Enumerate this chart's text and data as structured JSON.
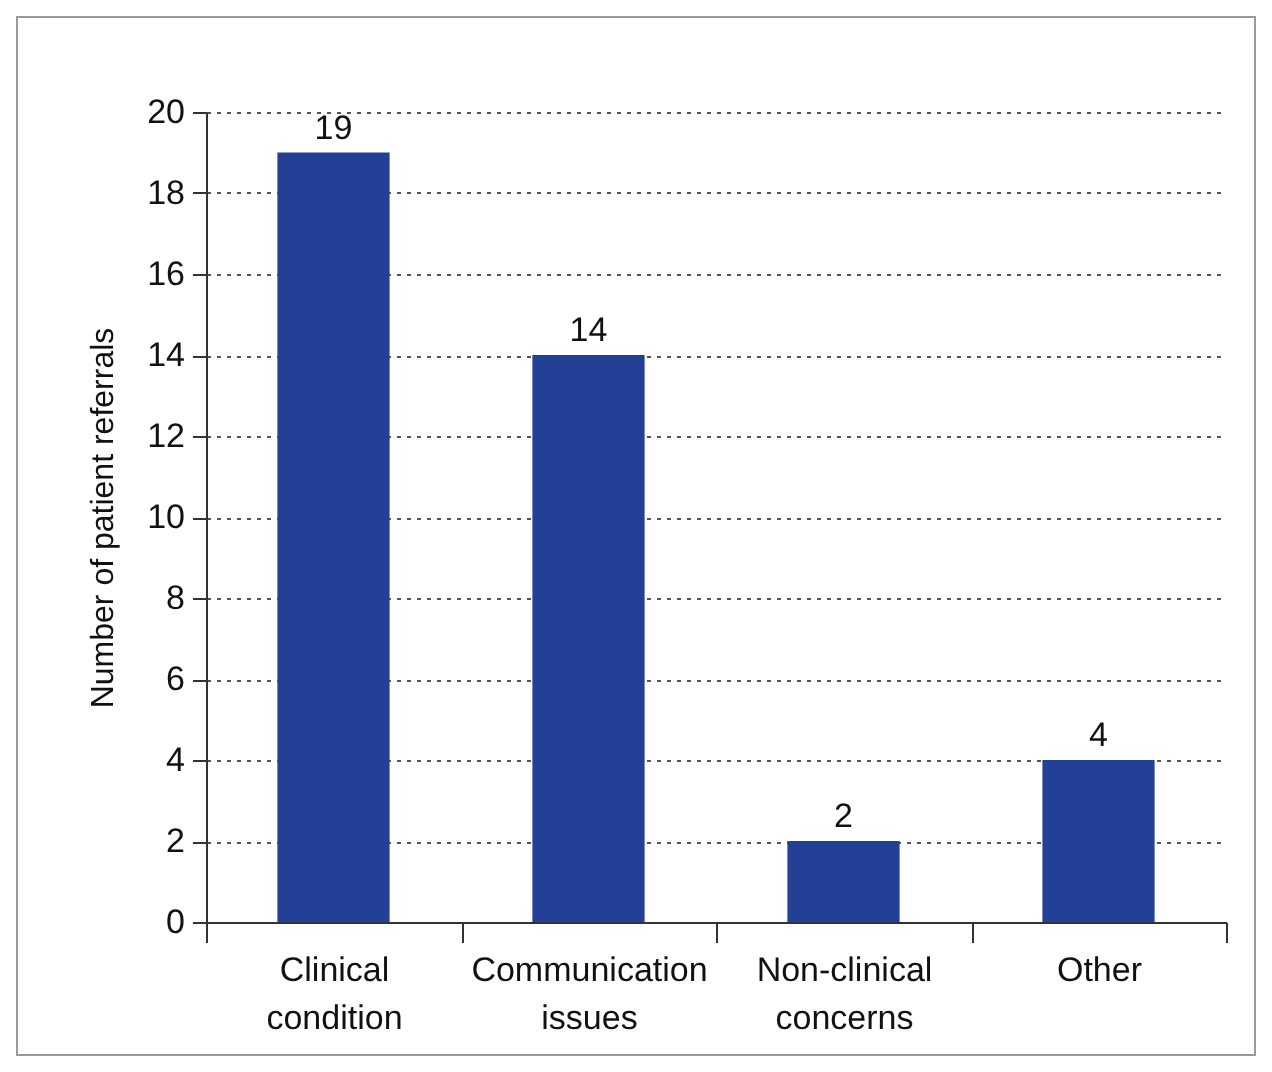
{
  "chart_data": {
    "type": "bar",
    "ylabel": "Number of patient referrals",
    "categories": [
      "Clinical condition",
      "Communication issues",
      "Non-clinical concerns",
      "Other"
    ],
    "values": [
      19,
      14,
      2,
      4
    ],
    "color": "#233f96",
    "ylim": [
      0,
      20
    ],
    "yticks": [
      0,
      2,
      4,
      6,
      8,
      10,
      12,
      14,
      16,
      18,
      20
    ],
    "grid": "y",
    "data_labels": true
  }
}
